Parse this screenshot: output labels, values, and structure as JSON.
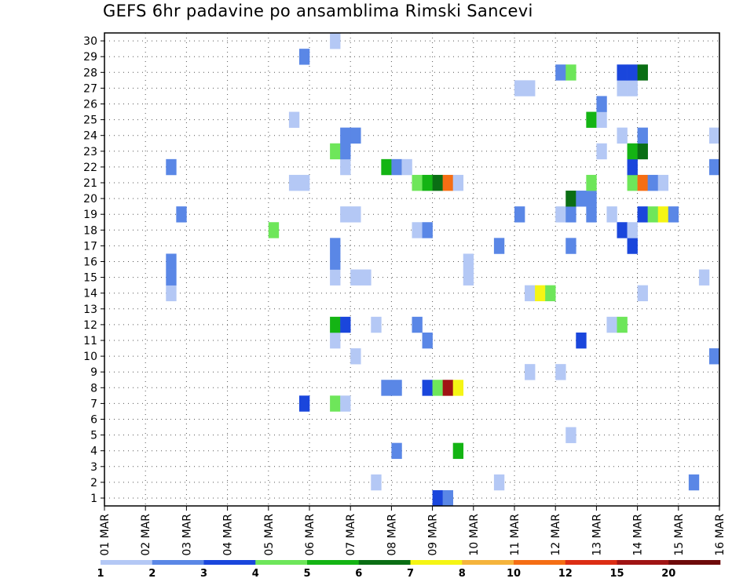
{
  "chart_data": {
    "type": "heatmap",
    "title": "GEFS 6hr padavine po ansamblima Rimski Sancevi",
    "xlabel": "",
    "ylabel": "",
    "x_tick_labels": [
      "01 MAR",
      "02 MAR",
      "03 MAR",
      "04 MAR",
      "05 MAR",
      "06 MAR",
      "07 MAR",
      "08 MAR",
      "09 MAR",
      "10 MAR",
      "11 MAR",
      "12 MAR",
      "13 MAR",
      "14 MAR",
      "15 MAR",
      "16 MAR"
    ],
    "y_tick_labels": [
      "1",
      "2",
      "3",
      "4",
      "5",
      "6",
      "7",
      "8",
      "9",
      "10",
      "11",
      "12",
      "13",
      "14",
      "15",
      "16",
      "17",
      "18",
      "19",
      "20",
      "21",
      "22",
      "23",
      "24",
      "25",
      "26",
      "27",
      "28",
      "29",
      "30"
    ],
    "time_range_days": [
      1,
      16
    ],
    "member_range": [
      1,
      30
    ],
    "grid": "dotted",
    "time_step_hours": 6,
    "colorbar": {
      "labels": [
        "1",
        "2",
        "3",
        "4",
        "5",
        "6",
        "7",
        "8",
        "10",
        "12",
        "15",
        "20"
      ],
      "colors": [
        "#b4c8f5",
        "#5a87e6",
        "#1a46dc",
        "#6ee65a",
        "#14b414",
        "#0a6e14",
        "#f5f514",
        "#f5b43c",
        "#f56e14",
        "#dc2d14",
        "#a01414",
        "#6e0a0a"
      ]
    },
    "cells": [
      {
        "member": 1,
        "step": 33,
        "level": 3
      },
      {
        "member": 1,
        "step": 34,
        "level": 2
      },
      {
        "member": 2,
        "step": 27,
        "level": 1
      },
      {
        "member": 2,
        "step": 39,
        "level": 1
      },
      {
        "member": 2,
        "step": 58,
        "level": 2
      },
      {
        "member": 4,
        "step": 29,
        "level": 2
      },
      {
        "member": 4,
        "step": 35,
        "level": 5
      },
      {
        "member": 5,
        "step": 46,
        "level": 1
      },
      {
        "member": 7,
        "step": 20,
        "level": 3
      },
      {
        "member": 7,
        "step": 23,
        "level": 4
      },
      {
        "member": 7,
        "step": 24,
        "level": 1
      },
      {
        "member": 8,
        "step": 28,
        "level": 2
      },
      {
        "member": 8,
        "step": 29,
        "level": 2
      },
      {
        "member": 8,
        "step": 32,
        "level": 3
      },
      {
        "member": 8,
        "step": 33,
        "level": 4
      },
      {
        "member": 8,
        "step": 34,
        "level": 11
      },
      {
        "member": 8,
        "step": 35,
        "level": 7
      },
      {
        "member": 9,
        "step": 42,
        "level": 1
      },
      {
        "member": 9,
        "step": 45,
        "level": 1
      },
      {
        "member": 10,
        "step": 25,
        "level": 1
      },
      {
        "member": 10,
        "step": 60,
        "level": 2
      },
      {
        "member": 11,
        "step": 23,
        "level": 1
      },
      {
        "member": 11,
        "step": 32,
        "level": 2
      },
      {
        "member": 11,
        "step": 47,
        "level": 3
      },
      {
        "member": 12,
        "step": 23,
        "level": 5
      },
      {
        "member": 12,
        "step": 24,
        "level": 3
      },
      {
        "member": 12,
        "step": 27,
        "level": 1
      },
      {
        "member": 12,
        "step": 31,
        "level": 2
      },
      {
        "member": 12,
        "step": 50,
        "level": 1
      },
      {
        "member": 12,
        "step": 51,
        "level": 4
      },
      {
        "member": 14,
        "step": 7,
        "level": 1
      },
      {
        "member": 14,
        "step": 42,
        "level": 1
      },
      {
        "member": 14,
        "step": 43,
        "level": 7
      },
      {
        "member": 14,
        "step": 44,
        "level": 4
      },
      {
        "member": 14,
        "step": 53,
        "level": 1
      },
      {
        "member": 15,
        "step": 7,
        "level": 2
      },
      {
        "member": 15,
        "step": 23,
        "level": 1
      },
      {
        "member": 15,
        "step": 25,
        "level": 1
      },
      {
        "member": 15,
        "step": 26,
        "level": 1
      },
      {
        "member": 15,
        "step": 36,
        "level": 1
      },
      {
        "member": 15,
        "step": 59,
        "level": 1
      },
      {
        "member": 16,
        "step": 7,
        "level": 2
      },
      {
        "member": 16,
        "step": 23,
        "level": 2
      },
      {
        "member": 16,
        "step": 36,
        "level": 1
      },
      {
        "member": 17,
        "step": 23,
        "level": 2
      },
      {
        "member": 17,
        "step": 39,
        "level": 2
      },
      {
        "member": 17,
        "step": 46,
        "level": 2
      },
      {
        "member": 17,
        "step": 52,
        "level": 3
      },
      {
        "member": 18,
        "step": 17,
        "level": 4
      },
      {
        "member": 18,
        "step": 31,
        "level": 1
      },
      {
        "member": 18,
        "step": 32,
        "level": 2
      },
      {
        "member": 18,
        "step": 51,
        "level": 3
      },
      {
        "member": 18,
        "step": 52,
        "level": 1
      },
      {
        "member": 19,
        "step": 8,
        "level": 2
      },
      {
        "member": 19,
        "step": 24,
        "level": 1
      },
      {
        "member": 19,
        "step": 25,
        "level": 1
      },
      {
        "member": 19,
        "step": 41,
        "level": 2
      },
      {
        "member": 19,
        "step": 45,
        "level": 1
      },
      {
        "member": 19,
        "step": 46,
        "level": 2
      },
      {
        "member": 19,
        "step": 48,
        "level": 2
      },
      {
        "member": 19,
        "step": 50,
        "level": 1
      },
      {
        "member": 19,
        "step": 53,
        "level": 3
      },
      {
        "member": 19,
        "step": 54,
        "level": 4
      },
      {
        "member": 19,
        "step": 55,
        "level": 7
      },
      {
        "member": 19,
        "step": 56,
        "level": 2
      },
      {
        "member": 20,
        "step": 46,
        "level": 6
      },
      {
        "member": 20,
        "step": 47,
        "level": 2
      },
      {
        "member": 20,
        "step": 48,
        "level": 2
      },
      {
        "member": 21,
        "step": 19,
        "level": 1
      },
      {
        "member": 21,
        "step": 20,
        "level": 1
      },
      {
        "member": 21,
        "step": 31,
        "level": 4
      },
      {
        "member": 21,
        "step": 32,
        "level": 5
      },
      {
        "member": 21,
        "step": 33,
        "level": 6
      },
      {
        "member": 21,
        "step": 34,
        "level": 9
      },
      {
        "member": 21,
        "step": 35,
        "level": 1
      },
      {
        "member": 21,
        "step": 48,
        "level": 4
      },
      {
        "member": 21,
        "step": 52,
        "level": 4
      },
      {
        "member": 21,
        "step": 53,
        "level": 9
      },
      {
        "member": 21,
        "step": 54,
        "level": 2
      },
      {
        "member": 21,
        "step": 55,
        "level": 1
      },
      {
        "member": 22,
        "step": 7,
        "level": 2
      },
      {
        "member": 22,
        "step": 24,
        "level": 1
      },
      {
        "member": 22,
        "step": 28,
        "level": 5
      },
      {
        "member": 22,
        "step": 29,
        "level": 2
      },
      {
        "member": 22,
        "step": 30,
        "level": 1
      },
      {
        "member": 22,
        "step": 52,
        "level": 3
      },
      {
        "member": 22,
        "step": 60,
        "level": 2
      },
      {
        "member": 23,
        "step": 23,
        "level": 4
      },
      {
        "member": 23,
        "step": 24,
        "level": 2
      },
      {
        "member": 23,
        "step": 49,
        "level": 1
      },
      {
        "member": 23,
        "step": 52,
        "level": 5
      },
      {
        "member": 23,
        "step": 53,
        "level": 6
      },
      {
        "member": 24,
        "step": 24,
        "level": 2
      },
      {
        "member": 24,
        "step": 25,
        "level": 2
      },
      {
        "member": 24,
        "step": 51,
        "level": 1
      },
      {
        "member": 24,
        "step": 53,
        "level": 2
      },
      {
        "member": 24,
        "step": 60,
        "level": 1
      },
      {
        "member": 25,
        "step": 19,
        "level": 1
      },
      {
        "member": 25,
        "step": 48,
        "level": 5
      },
      {
        "member": 25,
        "step": 49,
        "level": 1
      },
      {
        "member": 26,
        "step": 49,
        "level": 2
      },
      {
        "member": 27,
        "step": 41,
        "level": 1
      },
      {
        "member": 27,
        "step": 42,
        "level": 1
      },
      {
        "member": 27,
        "step": 51,
        "level": 1
      },
      {
        "member": 27,
        "step": 52,
        "level": 1
      },
      {
        "member": 28,
        "step": 45,
        "level": 2
      },
      {
        "member": 28,
        "step": 46,
        "level": 4
      },
      {
        "member": 28,
        "step": 51,
        "level": 3
      },
      {
        "member": 28,
        "step": 52,
        "level": 3
      },
      {
        "member": 28,
        "step": 53,
        "level": 6
      },
      {
        "member": 29,
        "step": 20,
        "level": 2
      },
      {
        "member": 30,
        "step": 23,
        "level": 1
      }
    ]
  }
}
